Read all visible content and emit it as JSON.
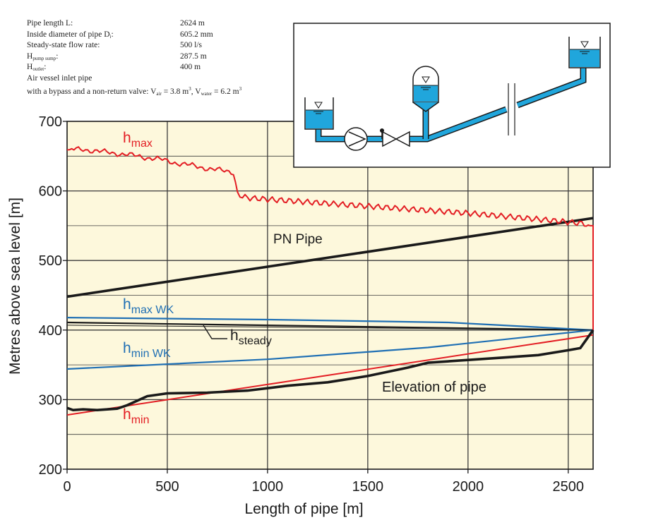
{
  "parameters": [
    {
      "label": "Pipe length L:",
      "value": "2624 m"
    },
    {
      "label": "Inside diameter of pipe D",
      "label_sub": "i",
      "label_after": ":",
      "value": "605.2 mm"
    },
    {
      "label": "Steady-state flow rate:",
      "value": "500 l/s"
    },
    {
      "label": "H",
      "label_sub": "pump sump",
      "label_after": ":",
      "value": "287.5 m"
    },
    {
      "label": "H",
      "label_sub": "outlet",
      "label_after": ":",
      "value": "400 m"
    },
    {
      "label": "Air vessel inlet pipe",
      "value": ""
    }
  ],
  "parameter_last": {
    "text": "with a bypass and a non-return valve:",
    "v_air": "V",
    "v_air_sub": "air",
    "v_air_val": " = 3.8 m",
    "v_water": ", V",
    "v_water_sub": "water",
    "v_water_val": " = 6.2 m",
    "unit_sup": "3"
  },
  "colors": {
    "h_max": "#e31e24",
    "h_min": "#e31e24",
    "h_max_wk": "#1f6fb4",
    "h_min_wk": "#1f6fb4",
    "pn_pipe": "#1a1a1a",
    "elevation": "#1a1a1a",
    "h_steady": "#1a1a1a",
    "plot_bg": "#fdf8dc",
    "water": "#20a6dc"
  },
  "chart_data": {
    "type": "line",
    "xlabel": "Length of pipe [m]",
    "ylabel": "Metres above sea level [m]",
    "xlim": [
      0,
      2624
    ],
    "ylim": [
      200,
      700
    ],
    "x_ticks": [
      0,
      500,
      1000,
      1500,
      2000,
      2500
    ],
    "y_ticks": [
      200,
      300,
      400,
      500,
      600,
      700
    ],
    "grid": true,
    "series": [
      {
        "name": "h_max",
        "label_main": "h",
        "label_sub": "max",
        "color": "#e31e24",
        "x": [
          0,
          80,
          150,
          250,
          350,
          450,
          550,
          650,
          750,
          830,
          850,
          900,
          1000,
          1200,
          1400,
          1600,
          1800,
          2000,
          2200,
          2400,
          2580,
          2610,
          2624,
          2624
        ],
        "y": [
          659,
          660,
          657,
          654,
          650,
          646,
          640,
          635,
          630,
          627,
          595,
          590,
          588,
          584,
          580,
          576,
          572,
          568,
          563,
          558,
          553,
          550,
          550,
          400
        ]
      },
      {
        "name": "h_min",
        "label_main": "h",
        "label_sub": "min",
        "color": "#e31e24",
        "x": [
          0,
          2624
        ],
        "y": [
          278,
          393
        ]
      },
      {
        "name": "h_max WK",
        "label_main": "h",
        "label_sub": "max WK",
        "color": "#1f6fb4",
        "x": [
          0,
          1000,
          1900,
          2624
        ],
        "y": [
          418,
          415,
          411,
          400
        ]
      },
      {
        "name": "h_min WK",
        "label_main": "h",
        "label_sub": "min WK",
        "color": "#1f6fb4",
        "x": [
          0,
          1000,
          1800,
          2624
        ],
        "y": [
          344,
          358,
          375,
          400
        ]
      },
      {
        "name": "PN Pipe",
        "color": "#1a1a1a",
        "x": [
          0,
          2624
        ],
        "y": [
          448,
          561
        ]
      },
      {
        "name": "h_steady",
        "label_main": "h",
        "label_sub": "steady",
        "color": "#1a1a1a",
        "x": [
          0,
          2624
        ],
        "y": [
          411,
          400
        ]
      },
      {
        "name": "Elevation of pipe",
        "color": "#1a1a1a",
        "x": [
          0,
          30,
          80,
          150,
          250,
          300,
          400,
          500,
          700,
          900,
          1100,
          1300,
          1500,
          1700,
          1800,
          2000,
          2200,
          2350,
          2500,
          2560,
          2624
        ],
        "y": [
          288,
          285,
          286,
          285,
          287,
          292,
          305,
          309,
          310,
          313,
          320,
          325,
          334,
          346,
          353,
          357,
          361,
          364,
          371,
          374,
          400
        ]
      }
    ]
  }
}
